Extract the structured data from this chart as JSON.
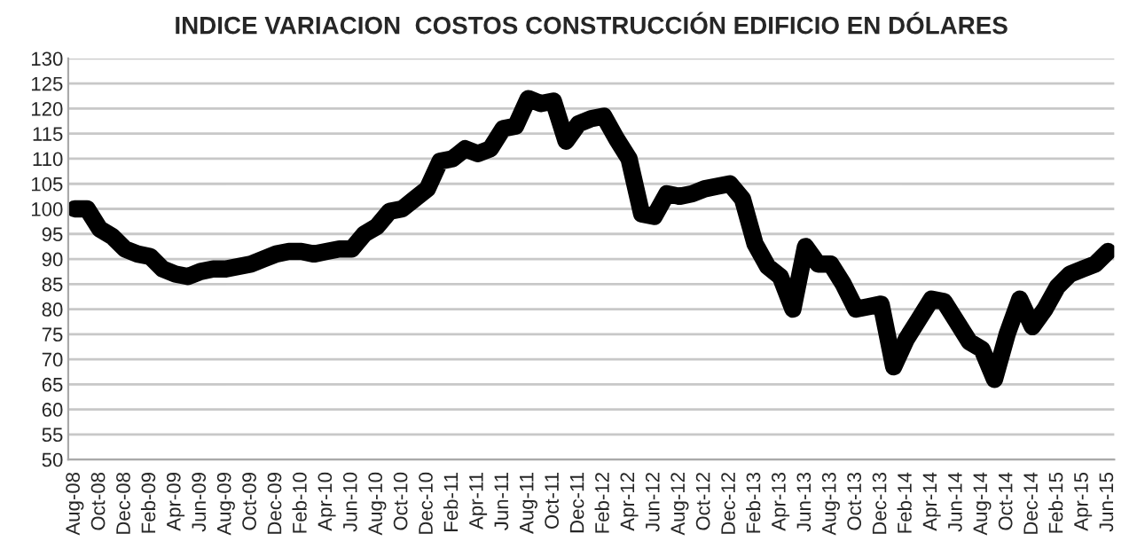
{
  "chart_data": {
    "type": "line",
    "title": "INDICE VARIACION  COSTOS CONSTRUCCIÓN EDIFICIO EN DÓLARES",
    "categories": [
      "Aug-08",
      null,
      "Oct-08",
      null,
      "Dec-08",
      null,
      "Feb-09",
      null,
      "Apr-09",
      null,
      "Jun-09",
      null,
      "Aug-09",
      null,
      "Oct-09",
      null,
      "Dec-09",
      null,
      "Feb-10",
      null,
      "Apr-10",
      null,
      "Jun-10",
      null,
      "Aug-10",
      null,
      "Oct-10",
      null,
      "Dec-10",
      null,
      "Feb-11",
      null,
      "Apr-11",
      null,
      "Jun-11",
      null,
      "Aug-11",
      null,
      "Oct-11",
      null,
      "Dec-11",
      null,
      "Feb-12",
      null,
      "Apr-12",
      null,
      "Jun-12",
      null,
      "Aug-12",
      null,
      "Oct-12",
      null,
      "Dec-12",
      null,
      "Feb-13",
      null,
      "Apr-13",
      null,
      "Jun-13",
      null,
      "Aug-13",
      null,
      "Oct-13",
      null,
      "Dec-13",
      null,
      "Feb-14",
      null,
      "Apr-14",
      null,
      "Jun-14",
      null,
      "Aug-14",
      null,
      "Oct-14",
      null,
      "Dec-14",
      null,
      "Feb-15",
      null,
      "Apr-15",
      null,
      "Jun-15"
    ],
    "series": [
      {
        "color": "#000000",
        "values": [
          100,
          100,
          96,
          94.5,
          92,
          91,
          90.5,
          88,
          87,
          86.5,
          87.5,
          88,
          88,
          88.5,
          89,
          90,
          91,
          91.5,
          91.5,
          91,
          91.5,
          92,
          92,
          95,
          96.5,
          99.5,
          100,
          102,
          104,
          109.5,
          110,
          112,
          111,
          112,
          116,
          116.5,
          122,
          121,
          121.5,
          113.5,
          117,
          118,
          118.5,
          114,
          110,
          99,
          98.5,
          103,
          102.5,
          103,
          104,
          104.5,
          105,
          102,
          93,
          88.5,
          86.5,
          80,
          92.5,
          89,
          89,
          85,
          80,
          80.5,
          81,
          68.5,
          74,
          78,
          82,
          81.5,
          77.5,
          73.5,
          72,
          66,
          75,
          82,
          76.5,
          80,
          84.5,
          87,
          88,
          89,
          91.5
        ]
      }
    ],
    "ylim": [
      50,
      130
    ],
    "yticks": [
      50,
      55,
      60,
      65,
      70,
      75,
      80,
      85,
      90,
      95,
      100,
      105,
      110,
      115,
      120,
      125,
      130
    ],
    "grid": "y",
    "marker": "none",
    "line_style": "solid"
  }
}
